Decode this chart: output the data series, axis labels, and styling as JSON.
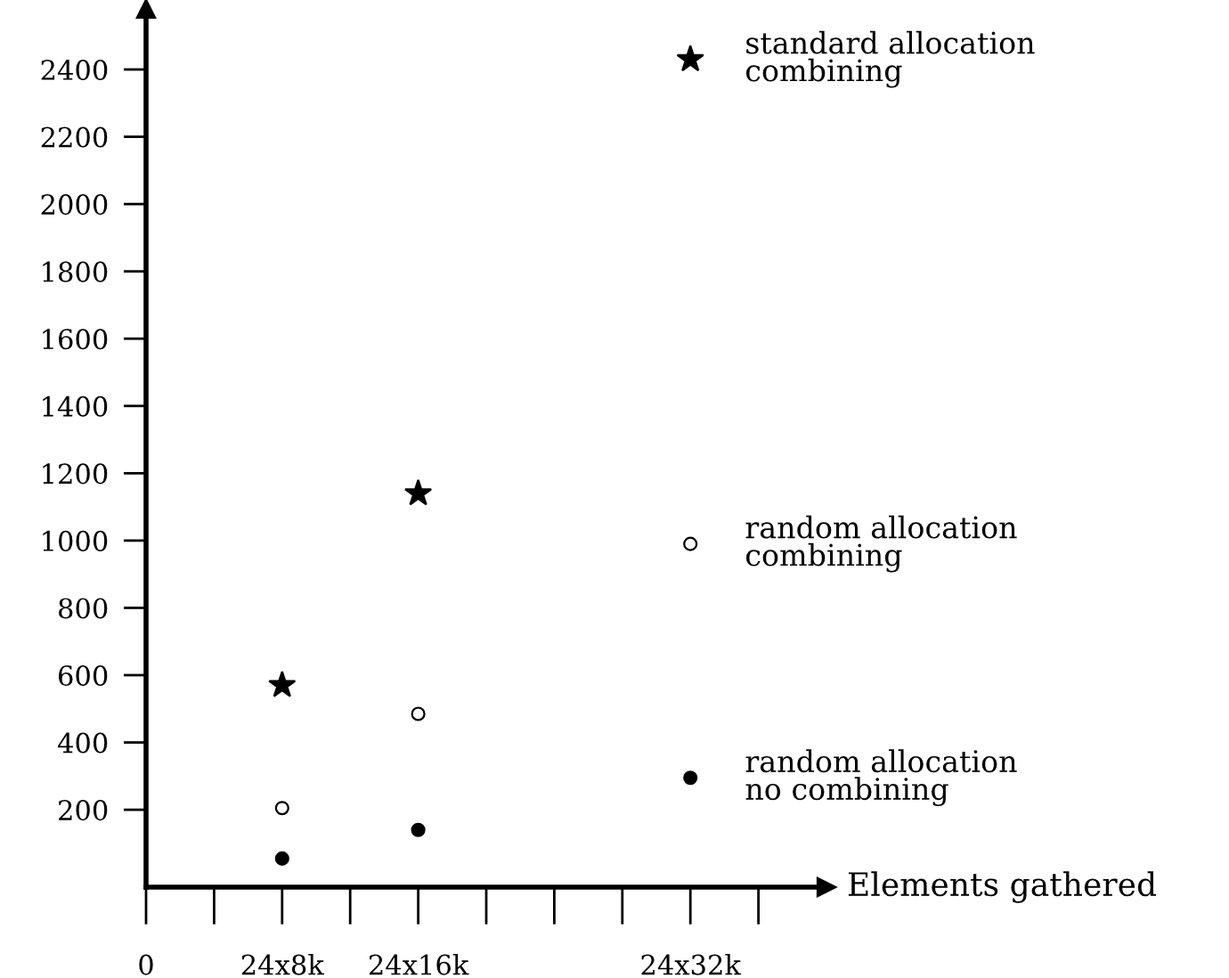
{
  "chart_data": {
    "type": "scatter",
    "xlabel": "Elements gathered",
    "categories": [
      "0",
      null,
      "24x8k",
      null,
      "24x16k",
      null,
      null,
      null,
      "24x32k",
      null
    ],
    "ylim": [
      -30,
      2580
    ],
    "yticks": [
      200,
      400,
      600,
      800,
      1000,
      1200,
      1400,
      1600,
      1800,
      2000,
      2200,
      2400
    ],
    "grid": false,
    "legend": false,
    "series": [
      {
        "name": "standard allocation\ncombining",
        "color": "#000000",
        "marker": "star",
        "values": [
          null,
          null,
          570,
          null,
          1140,
          null,
          null,
          null,
          2430,
          null
        ]
      },
      {
        "name": "random allocation\ncombining",
        "color": "#ffffff",
        "marker": "circle",
        "values": [
          null,
          null,
          205,
          null,
          485,
          null,
          null,
          null,
          990,
          null
        ]
      },
      {
        "name": "random allocation\nno combining",
        "color": "#000000",
        "marker": "circle",
        "values": [
          null,
          null,
          55,
          null,
          140,
          null,
          null,
          null,
          295,
          null
        ]
      }
    ]
  }
}
